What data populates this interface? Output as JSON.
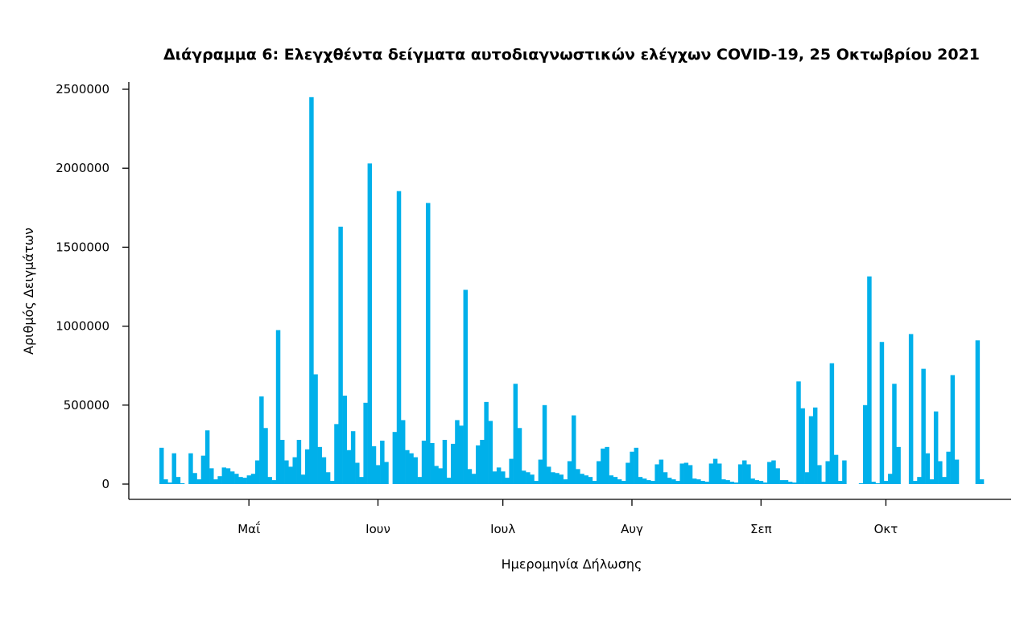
{
  "chart_data": {
    "type": "bar",
    "title": "Διάγραμμα 6: Ελεγχθέντα δείγματα αυτοδιαγνωστικών ελέγχων COVID-19, 25 Οκτωβρίου 2021",
    "xlabel": "Ημερομηνία Δήλωσης",
    "ylabel": "Αριθμός Δειγμάτων",
    "ylim": [
      0,
      2500000
    ],
    "yticks": [
      "0",
      "500000",
      "1000000",
      "1500000",
      "2000000",
      "2500000"
    ],
    "ytick_values": [
      0,
      500000,
      1000000,
      1500000,
      2000000,
      2500000
    ],
    "xticks": [
      {
        "label": "Μαΐ",
        "day_index": 21
      },
      {
        "label": "Ιουν",
        "day_index": 52
      },
      {
        "label": "Ιουλ",
        "day_index": 82
      },
      {
        "label": "Αυγ",
        "day_index": 113
      },
      {
        "label": "Σεπ",
        "day_index": 144
      },
      {
        "label": "Οκτ",
        "day_index": 174
      }
    ],
    "grid": false,
    "bar_color": "#00b0ea",
    "values": [
      230000,
      30000,
      10000,
      195000,
      45000,
      5000,
      0,
      195000,
      70000,
      30000,
      180000,
      340000,
      100000,
      30000,
      50000,
      105000,
      100000,
      80000,
      65000,
      45000,
      40000,
      55000,
      65000,
      150000,
      555000,
      355000,
      45000,
      25000,
      975000,
      280000,
      150000,
      110000,
      170000,
      280000,
      60000,
      220000,
      2450000,
      695000,
      235000,
      170000,
      75000,
      20000,
      380000,
      1630000,
      560000,
      215000,
      335000,
      135000,
      45000,
      515000,
      2030000,
      240000,
      120000,
      275000,
      140000,
      0,
      330000,
      1855000,
      405000,
      215000,
      195000,
      170000,
      45000,
      275000,
      1780000,
      260000,
      115000,
      100000,
      280000,
      40000,
      255000,
      405000,
      370000,
      1230000,
      95000,
      65000,
      245000,
      280000,
      520000,
      400000,
      80000,
      105000,
      80000,
      40000,
      160000,
      635000,
      355000,
      85000,
      75000,
      60000,
      20000,
      155000,
      500000,
      110000,
      75000,
      70000,
      60000,
      30000,
      145000,
      435000,
      95000,
      65000,
      55000,
      45000,
      20000,
      145000,
      225000,
      235000,
      55000,
      45000,
      30000,
      20000,
      135000,
      205000,
      230000,
      45000,
      35000,
      25000,
      20000,
      125000,
      155000,
      75000,
      40000,
      30000,
      20000,
      130000,
      135000,
      120000,
      35000,
      30000,
      20000,
      15000,
      130000,
      160000,
      130000,
      30000,
      25000,
      15000,
      10000,
      125000,
      150000,
      125000,
      35000,
      25000,
      20000,
      10000,
      140000,
      150000,
      100000,
      25000,
      25000,
      15000,
      10000,
      650000,
      480000,
      75000,
      430000,
      485000,
      120000,
      15000,
      145000,
      765000,
      185000,
      20000,
      150000,
      0,
      0,
      0,
      5000,
      500000,
      1315000,
      15000,
      5000,
      900000,
      20000,
      65000,
      635000,
      235000,
      0,
      0,
      950000,
      20000,
      45000,
      730000,
      195000,
      30000,
      460000,
      145000,
      45000,
      205000,
      690000,
      155000,
      0,
      0,
      0,
      0,
      910000,
      30000
    ]
  }
}
